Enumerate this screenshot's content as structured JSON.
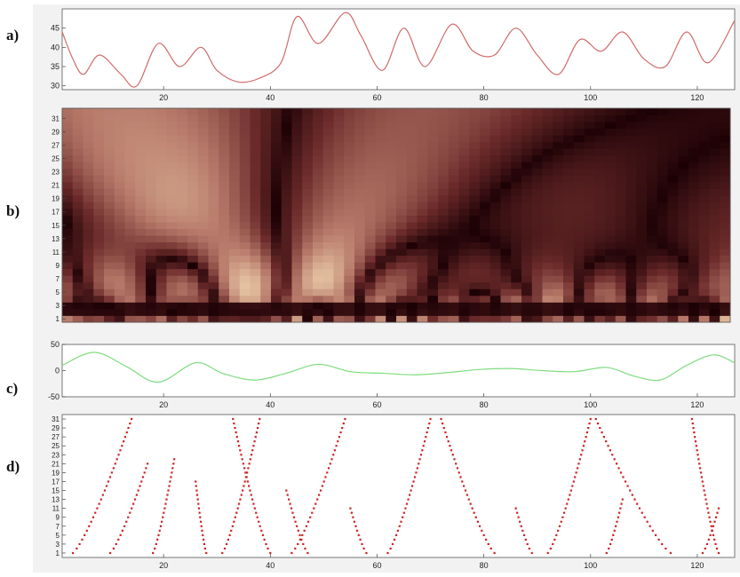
{
  "figure": {
    "panel_labels": [
      "a)",
      "b)",
      "c)",
      "d)"
    ],
    "background_color": "#f2f2f2",
    "plot_background_color": "#ffffff"
  },
  "chart_data": [
    {
      "id": "a",
      "type": "line",
      "color": "#d06a6a",
      "x": [
        1,
        3,
        5,
        8,
        12,
        15,
        19,
        23,
        27,
        30,
        34,
        38,
        42,
        45,
        49,
        54,
        57,
        61,
        65,
        69,
        74,
        78,
        82,
        86,
        90,
        94,
        98,
        102,
        106,
        110,
        114,
        118,
        122,
        127
      ],
      "y": [
        44,
        37,
        33,
        38,
        33,
        30,
        41,
        35,
        40,
        34,
        31,
        32,
        36,
        48,
        41,
        49,
        43,
        34,
        45,
        35,
        46,
        39,
        38,
        45,
        38,
        33,
        42,
        39,
        44,
        37,
        35,
        44,
        36,
        47
      ],
      "xlim": [
        1,
        127
      ],
      "ylim": [
        29,
        50
      ],
      "xticks": [
        20,
        40,
        60,
        80,
        100,
        120
      ],
      "yticks": [
        30,
        35,
        40,
        45
      ],
      "grid": false
    },
    {
      "id": "b",
      "type": "heatmap",
      "description_hint": "continuous wavelet scalogram, scales 1-31 on y, time 1-127 on x",
      "colormap": [
        "#1a0004",
        "#6b2a2a",
        "#b77a6a",
        "#e9c9a7",
        "#fff8dc"
      ],
      "xlim": [
        1,
        127
      ],
      "ylim": [
        1,
        32
      ],
      "yticks": [
        1,
        3,
        5,
        7,
        9,
        11,
        13,
        15,
        17,
        19,
        21,
        23,
        25,
        27,
        29,
        31
      ],
      "grid": false
    },
    {
      "id": "c",
      "type": "line",
      "color": "#7fdc7f",
      "x": [
        1,
        7,
        13,
        19,
        26,
        31,
        37,
        43,
        49,
        55,
        61,
        67,
        73,
        79,
        85,
        91,
        97,
        103,
        108,
        113,
        118,
        123,
        127
      ],
      "y": [
        10,
        35,
        8,
        -22,
        15,
        -5,
        -18,
        -5,
        12,
        -2,
        -5,
        -8,
        -4,
        2,
        4,
        0,
        -2,
        6,
        -10,
        -18,
        10,
        30,
        15
      ],
      "xlim": [
        1,
        127
      ],
      "ylim": [
        -50,
        50
      ],
      "xticks": [
        20,
        40,
        60,
        80,
        100,
        120
      ],
      "yticks": [
        -50,
        0,
        50
      ],
      "grid": false
    },
    {
      "id": "d",
      "type": "scatter",
      "description_hint": "red dot markers tracing modulus-maxima lines across scales",
      "color": "#cc2222",
      "xlim": [
        1,
        127
      ],
      "ylim": [
        0,
        32
      ],
      "xticks": [
        20,
        40,
        60,
        80,
        100,
        120
      ],
      "yticks": [
        1,
        3,
        5,
        7,
        9,
        11,
        13,
        15,
        17,
        19,
        21,
        23,
        25,
        27,
        29,
        31
      ],
      "ridges": [
        {
          "top": 31,
          "x_top": 14,
          "x_bottom": 3
        },
        {
          "top": 21,
          "x_top": 17,
          "x_bottom": 10
        },
        {
          "top": 22,
          "x_top": 22,
          "x_bottom": 18
        },
        {
          "top": 17,
          "x_top": 26,
          "x_bottom": 28
        },
        {
          "top": 31,
          "x_top": 33,
          "x_bottom": 40
        },
        {
          "top": 31,
          "x_top": 38,
          "x_bottom": 31
        },
        {
          "top": 15,
          "x_top": 43,
          "x_bottom": 47
        },
        {
          "top": 31,
          "x_top": 54,
          "x_bottom": 44
        },
        {
          "top": 11,
          "x_top": 55,
          "x_bottom": 58
        },
        {
          "top": 31,
          "x_top": 70,
          "x_bottom": 62
        },
        {
          "top": 31,
          "x_top": 72,
          "x_bottom": 82
        },
        {
          "top": 11,
          "x_top": 86,
          "x_bottom": 89
        },
        {
          "top": 31,
          "x_top": 100,
          "x_bottom": 92
        },
        {
          "top": 31,
          "x_top": 101,
          "x_bottom": 115
        },
        {
          "top": 13,
          "x_top": 106,
          "x_bottom": 103
        },
        {
          "top": 31,
          "x_top": 119,
          "x_bottom": 124
        },
        {
          "top": 11,
          "x_top": 124,
          "x_bottom": 121
        }
      ]
    }
  ]
}
